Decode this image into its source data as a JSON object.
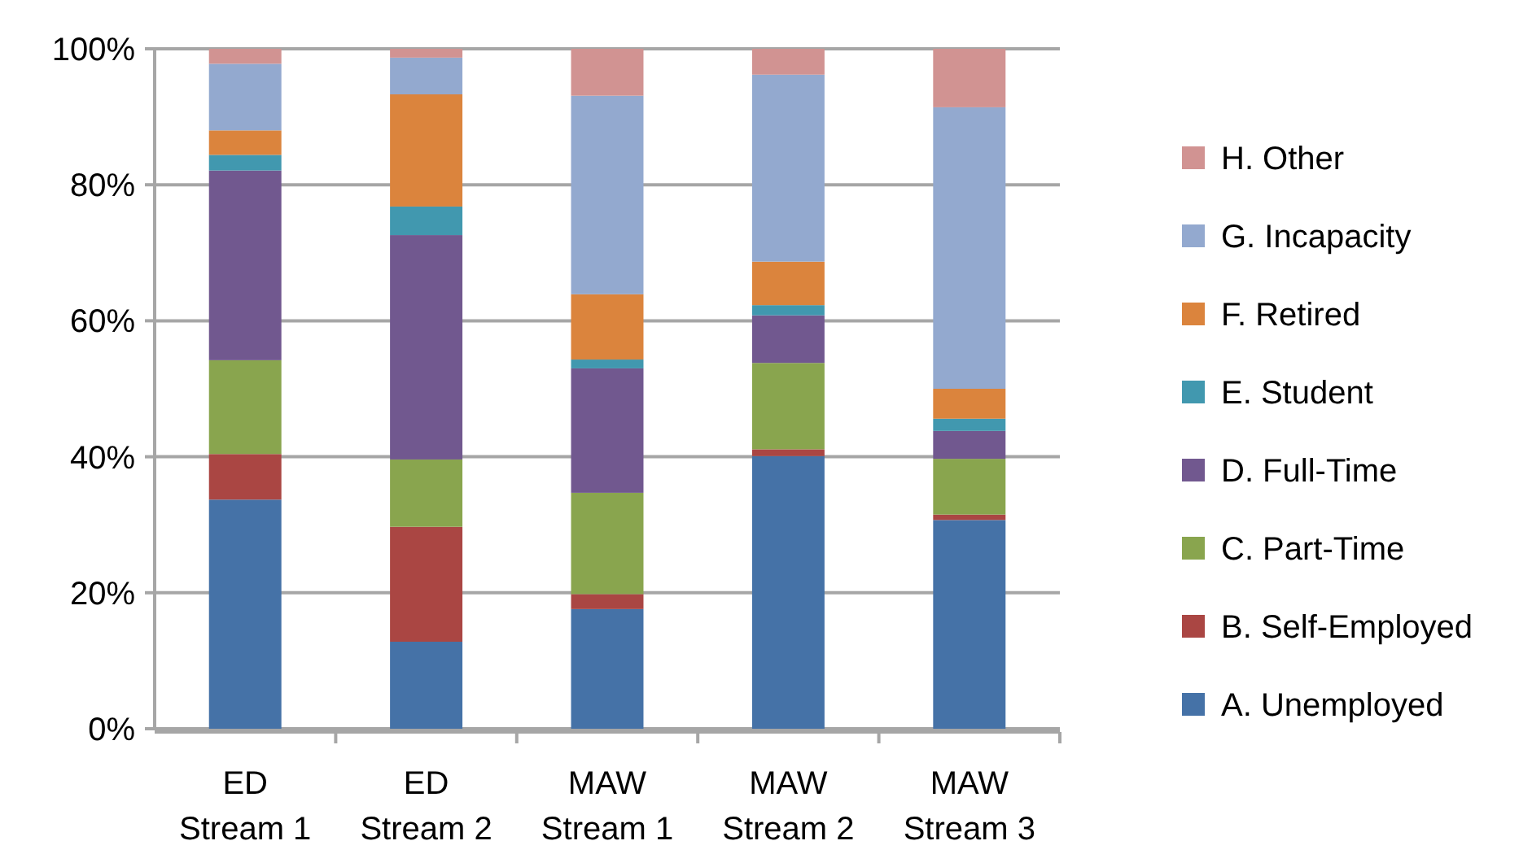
{
  "chart_data": {
    "type": "bar",
    "stacked": true,
    "categories": [
      "ED Stream 1",
      "ED Stream 2",
      "MAW Stream 1",
      "MAW Stream 2",
      "MAW Stream 3"
    ],
    "series": [
      {
        "name": "A. Unemployed",
        "color": "#4572a7",
        "values": [
          33.7,
          12.8,
          17.6,
          40.1,
          30.7
        ]
      },
      {
        "name": "B. Self-Employed",
        "color": "#aa4643",
        "values": [
          6.7,
          16.9,
          2.2,
          1.0,
          0.8
        ]
      },
      {
        "name": "C. Part-Time",
        "color": "#89a54e",
        "values": [
          13.8,
          9.9,
          14.9,
          12.7,
          8.2
        ]
      },
      {
        "name": "D. Full-Time",
        "color": "#71588f",
        "values": [
          27.9,
          33.0,
          18.3,
          7.0,
          4.1
        ]
      },
      {
        "name": "E. Student",
        "color": "#4198af",
        "values": [
          2.3,
          4.2,
          1.3,
          1.5,
          1.8
        ]
      },
      {
        "name": "F. Retired",
        "color": "#db843d",
        "values": [
          3.6,
          16.5,
          9.6,
          6.4,
          4.4
        ]
      },
      {
        "name": "G. Incapacity",
        "color": "#93a9cf",
        "values": [
          9.8,
          5.4,
          29.2,
          27.5,
          41.4
        ]
      },
      {
        "name": "H. Other",
        "color": "#d19392",
        "values": [
          2.2,
          1.3,
          6.9,
          3.8,
          8.6
        ]
      }
    ],
    "ylim": [
      0,
      100
    ],
    "yticks": [
      {
        "value": 0,
        "label": "0%"
      },
      {
        "value": 20,
        "label": "20%"
      },
      {
        "value": 40,
        "label": "40%"
      },
      {
        "value": 60,
        "label": "60%"
      },
      {
        "value": 80,
        "label": "80%"
      },
      {
        "value": 100,
        "label": "100%"
      }
    ],
    "grid": "y",
    "legend": "right"
  }
}
